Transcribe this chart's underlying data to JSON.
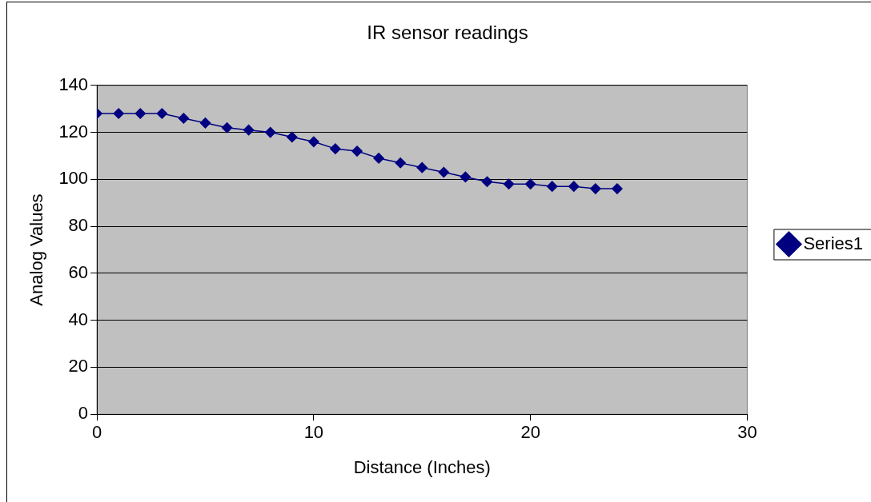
{
  "chart_data": {
    "type": "line",
    "title": "IR sensor readings",
    "xlabel": "Distance (Inches)",
    "ylabel": "Analog Values",
    "x": [
      0,
      1,
      2,
      3,
      4,
      5,
      6,
      7,
      8,
      9,
      10,
      11,
      12,
      13,
      14,
      15,
      16,
      17,
      18,
      19,
      20,
      21,
      22,
      23,
      24
    ],
    "series": [
      {
        "name": "Series1",
        "color": "#000080",
        "values": [
          128,
          128,
          128,
          128,
          126,
          124,
          122,
          121,
          120,
          118,
          116,
          113,
          112,
          109,
          107,
          105,
          103,
          101,
          99,
          98,
          98,
          97,
          97,
          96,
          96
        ]
      }
    ],
    "xlim": [
      0,
      30
    ],
    "xticks": [
      0,
      10,
      20,
      30
    ],
    "ylim": [
      0,
      140
    ],
    "yticks": [
      0,
      20,
      40,
      60,
      80,
      100,
      120,
      140
    ],
    "grid": "y",
    "legend": "right",
    "marker": "diamond",
    "line_style": "solid"
  }
}
